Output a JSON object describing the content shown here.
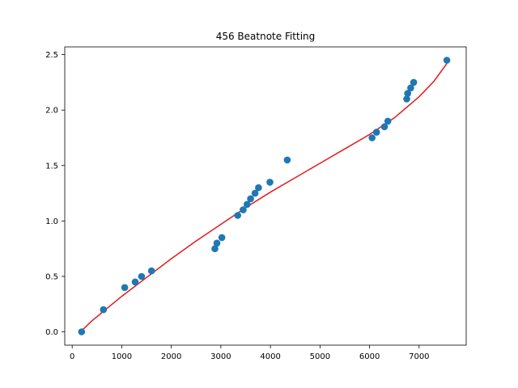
{
  "chart_data": {
    "type": "scatter",
    "title": "456 Beatnote Fitting",
    "xlabel": "",
    "ylabel": "",
    "xlim": [
      -150,
      7950
    ],
    "ylim": [
      -0.12,
      2.57
    ],
    "x_ticks": [
      0,
      1000,
      2000,
      3000,
      4000,
      5000,
      6000,
      7000
    ],
    "x_tick_labels": [
      "0",
      "1000",
      "2000",
      "3000",
      "4000",
      "5000",
      "6000",
      "7000"
    ],
    "y_ticks": [
      0.0,
      0.5,
      1.0,
      1.5,
      2.0,
      2.5
    ],
    "y_tick_labels": [
      "0.0",
      "0.5",
      "1.0",
      "1.5",
      "2.0",
      "2.5"
    ],
    "grid": false,
    "legend": "none",
    "series": [
      {
        "kind": "scatter",
        "color": "#1f77b4",
        "points": [
          [
            190,
            0.0
          ],
          [
            630,
            0.2
          ],
          [
            1060,
            0.4
          ],
          [
            1270,
            0.45
          ],
          [
            1400,
            0.5
          ],
          [
            1600,
            0.55
          ],
          [
            2880,
            0.75
          ],
          [
            2920,
            0.8
          ],
          [
            3020,
            0.85
          ],
          [
            3340,
            1.05
          ],
          [
            3450,
            1.1
          ],
          [
            3530,
            1.15
          ],
          [
            3600,
            1.2
          ],
          [
            3690,
            1.25
          ],
          [
            3760,
            1.3
          ],
          [
            3990,
            1.35
          ],
          [
            4340,
            1.55
          ],
          [
            6050,
            1.75
          ],
          [
            6140,
            1.8
          ],
          [
            6300,
            1.85
          ],
          [
            6370,
            1.9
          ],
          [
            6750,
            2.1
          ],
          [
            6770,
            2.15
          ],
          [
            6830,
            2.2
          ],
          [
            6890,
            2.25
          ],
          [
            7560,
            2.45
          ]
        ]
      },
      {
        "kind": "line",
        "color": "#e41a1c",
        "points": [
          [
            190,
            0.01
          ],
          [
            400,
            0.1
          ],
          [
            700,
            0.21
          ],
          [
            1000,
            0.32
          ],
          [
            1500,
            0.49
          ],
          [
            2000,
            0.66
          ],
          [
            2500,
            0.82
          ],
          [
            3000,
            0.97
          ],
          [
            3500,
            1.12
          ],
          [
            4000,
            1.26
          ],
          [
            4500,
            1.39
          ],
          [
            5000,
            1.52
          ],
          [
            5500,
            1.65
          ],
          [
            6000,
            1.78
          ],
          [
            6500,
            1.93
          ],
          [
            7000,
            2.12
          ],
          [
            7300,
            2.26
          ],
          [
            7560,
            2.42
          ]
        ]
      }
    ]
  }
}
